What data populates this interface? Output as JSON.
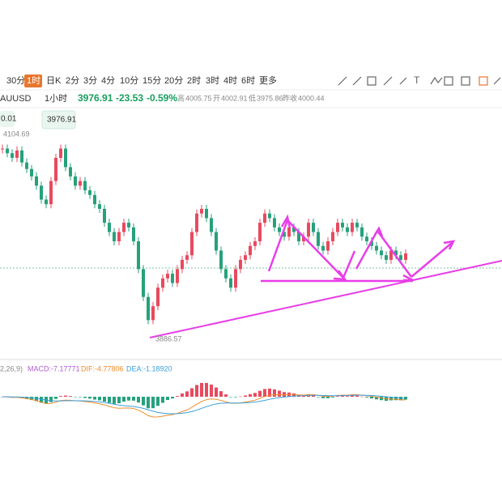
{
  "toolbar": {
    "intervals": [
      "30分",
      "1时",
      "日K",
      "2分",
      "3分",
      "4分",
      "10分",
      "15分",
      "20分",
      "2时",
      "3时",
      "4时",
      "6时",
      "更多"
    ],
    "active": 1
  },
  "quote": {
    "symbol": "AUUSD",
    "period": "1小时",
    "last": "3976.91",
    "change": "-23.53",
    "pct": "-0.59%",
    "high_label": "高",
    "high": "4005.75",
    "open_label": "开",
    "open": "4002.91",
    "low_label": "低",
    "low": "3975.86",
    "prev_label": "昨收",
    "prev": "4000.44"
  },
  "chart": {
    "left_box": "0.01",
    "price_box": "3976.91",
    "high_mark": "4104.69",
    "low_mark": "3886.57",
    "ylim": [
      3866,
      4128
    ],
    "closes": [
      4090,
      4085,
      4080,
      4088,
      4075,
      4068,
      4060,
      4050,
      4035,
      4030,
      4055,
      4080,
      4090,
      4070,
      4060,
      4050,
      4055,
      4045,
      4040,
      4030,
      4025,
      4010,
      4000,
      3990,
      4000,
      4010,
      4005,
      3990,
      3960,
      3930,
      3905,
      3920,
      3940,
      3950,
      3955,
      3945,
      3960,
      3970,
      3975,
      4000,
      4020,
      4025,
      4015,
      4000,
      3980,
      3960,
      3950,
      3940,
      3960,
      3970,
      3975,
      3985,
      3990,
      4010,
      4020,
      4015,
      4005,
      4000,
      3995,
      4005,
      4000,
      3990,
      3995,
      4010,
      4000,
      3985,
      3980,
      3990,
      4000,
      4010,
      4005,
      4000,
      4010,
      4005,
      3995,
      3990,
      3985,
      3980,
      3975,
      3970,
      3980,
      3975,
      3970,
      3976.91
    ]
  },
  "macd": {
    "params": "2,26,9)",
    "macd": "MACD:-7.17771",
    "dif": "DIF:-4.77806",
    "dea": "DEA:-1.18920"
  }
}
